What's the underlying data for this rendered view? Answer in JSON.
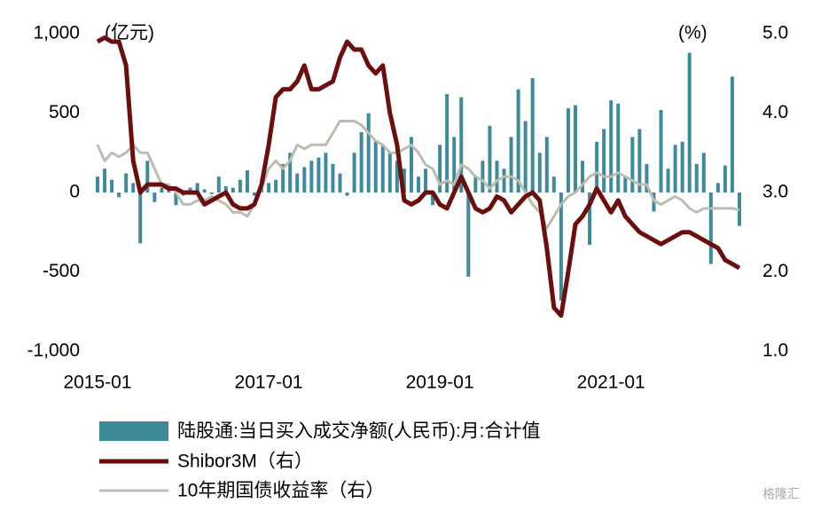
{
  "chart_data": {
    "type": "bar",
    "left_axis_label": "(亿元)",
    "right_axis_label": "(%)",
    "watermark": "格隆汇",
    "categories": [
      "2015-01",
      null,
      null,
      null,
      null,
      null,
      null,
      null,
      null,
      null,
      null,
      null,
      null,
      null,
      null,
      null,
      null,
      null,
      null,
      null,
      null,
      null,
      null,
      null,
      "2017-01",
      null,
      null,
      null,
      null,
      null,
      null,
      null,
      null,
      null,
      null,
      null,
      null,
      null,
      null,
      null,
      null,
      null,
      null,
      null,
      null,
      null,
      null,
      null,
      "2019-01",
      null,
      null,
      null,
      null,
      null,
      null,
      null,
      null,
      null,
      null,
      null,
      null,
      null,
      null,
      null,
      null,
      null,
      null,
      null,
      null,
      null,
      null,
      null,
      "2021-01",
      null,
      null,
      null,
      null,
      null,
      null,
      null,
      null,
      null,
      null,
      null,
      null,
      null,
      null,
      null,
      null,
      null,
      null
    ],
    "ylim": [
      -1000,
      1000
    ],
    "yticks": [
      {
        "value": 1000,
        "label": "1,000"
      },
      500,
      0,
      -500,
      {
        "value": -1000,
        "label": "-1,000"
      }
    ],
    "y2lim": [
      1,
      5
    ],
    "y2ticks": [
      {
        "value": 5,
        "label": "5.0"
      },
      {
        "value": 4,
        "label": "4.0"
      },
      {
        "value": 3,
        "label": "3.0"
      },
      {
        "value": 2,
        "label": "2.0"
      },
      {
        "value": 1,
        "label": "1.0"
      }
    ],
    "series": [
      {
        "name": "陆股通:当日买入成交净额(人民币):月:合计值",
        "type": "bar",
        "color": "#3f8a9a",
        "values": [
          100,
          150,
          80,
          -30,
          120,
          60,
          -320,
          200,
          -60,
          30,
          40,
          -80,
          -20,
          30,
          60,
          20,
          -10,
          100,
          40,
          30,
          80,
          140,
          -20,
          30,
          60,
          80,
          180,
          250,
          120,
          160,
          200,
          220,
          250,
          180,
          120,
          -20,
          250,
          380,
          500,
          320,
          300,
          250,
          200,
          150,
          350,
          100,
          150,
          -80,
          300,
          620,
          350,
          600,
          -530,
          100,
          200,
          420,
          200,
          150,
          350,
          650,
          450,
          720,
          250,
          350,
          100,
          -680,
          530,
          550,
          200,
          -330,
          320,
          400,
          580,
          560,
          100,
          350,
          400,
          180,
          -120,
          520,
          150,
          300,
          320,
          880,
          180,
          250,
          -450,
          60,
          170,
          730,
          -210
        ]
      },
      {
        "name": "Shibor3M（右）",
        "type": "line",
        "axis": "y2",
        "color": "#6b0e0e",
        "values": [
          4.9,
          4.95,
          4.9,
          4.9,
          4.6,
          3.4,
          3.0,
          3.1,
          3.1,
          3.1,
          3.05,
          3.05,
          3.0,
          3.0,
          3.0,
          2.85,
          2.9,
          2.95,
          3.0,
          2.85,
          2.8,
          2.8,
          2.85,
          3.1,
          3.6,
          4.2,
          4.3,
          4.3,
          4.4,
          4.6,
          4.3,
          4.3,
          4.35,
          4.4,
          4.7,
          4.9,
          4.8,
          4.8,
          4.6,
          4.5,
          4.6,
          4.0,
          3.6,
          2.9,
          2.85,
          2.9,
          3.0,
          3.0,
          2.85,
          2.8,
          3.0,
          3.2,
          3.0,
          2.8,
          2.75,
          2.8,
          2.95,
          2.9,
          2.75,
          2.85,
          2.95,
          3.0,
          2.9,
          2.3,
          1.55,
          1.45,
          2.0,
          2.6,
          2.7,
          2.85,
          3.05,
          2.9,
          2.75,
          2.9,
          2.7,
          2.6,
          2.5,
          2.45,
          2.4,
          2.35,
          2.4,
          2.45,
          2.5,
          2.5,
          2.45,
          2.4,
          2.35,
          2.3,
          2.15,
          2.1,
          2.05
        ]
      },
      {
        "name": "10年期国债收益率（右）",
        "type": "line",
        "axis": "y2",
        "color": "#bdbcb0",
        "values": [
          3.6,
          3.4,
          3.5,
          3.45,
          3.5,
          3.6,
          3.5,
          3.5,
          3.3,
          3.1,
          3.1,
          3.0,
          2.85,
          2.85,
          2.9,
          2.9,
          2.95,
          2.9,
          2.85,
          2.75,
          2.75,
          2.7,
          2.85,
          3.05,
          3.3,
          3.4,
          3.3,
          3.4,
          3.6,
          3.55,
          3.6,
          3.6,
          3.6,
          3.75,
          3.9,
          3.9,
          3.9,
          3.85,
          3.75,
          3.65,
          3.6,
          3.5,
          3.5,
          3.55,
          3.6,
          3.5,
          3.35,
          3.3,
          3.1,
          3.15,
          3.1,
          3.35,
          3.3,
          3.2,
          3.15,
          3.05,
          3.15,
          3.2,
          3.2,
          3.15,
          3.0,
          2.85,
          2.75,
          2.55,
          2.7,
          2.85,
          2.95,
          3.0,
          3.1,
          3.2,
          3.25,
          3.2,
          3.2,
          3.25,
          3.2,
          3.15,
          3.1,
          3.1,
          2.9,
          2.85,
          2.9,
          2.95,
          2.9,
          2.8,
          2.75,
          2.8,
          2.8,
          2.8,
          2.8,
          2.8,
          2.78
        ]
      }
    ]
  }
}
